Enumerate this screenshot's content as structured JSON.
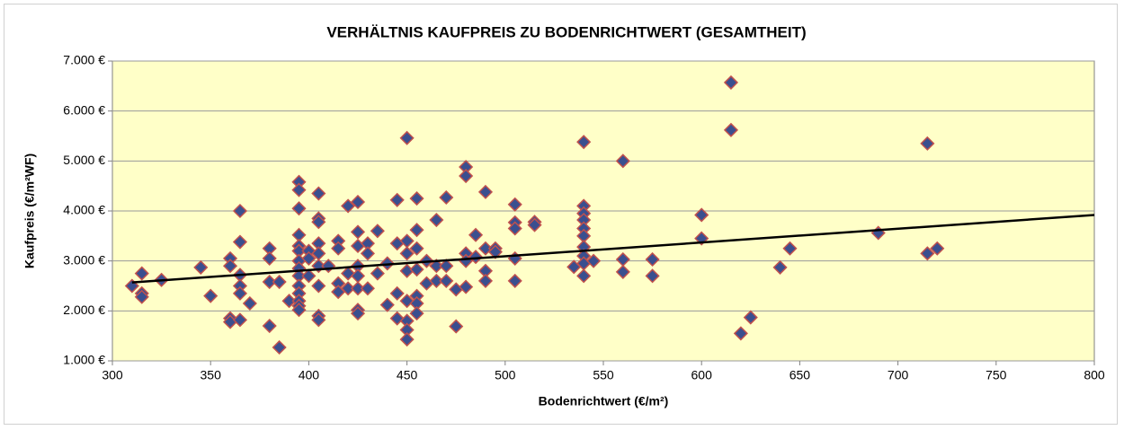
{
  "chart_data": {
    "type": "scatter",
    "title": "VERHÄLTNIS KAUFPREIS ZU BODENRICHTWERT (GESAMTHEIT)",
    "x_label": "Bodenrichtwert (€/m²)",
    "y_label": "Kaufpreis (€/m²WF)",
    "xlim": [
      300,
      800
    ],
    "xticks": [
      300,
      350,
      400,
      450,
      500,
      550,
      600,
      650,
      700,
      750,
      800
    ],
    "ylim": [
      1000,
      7000
    ],
    "yticks": [
      {
        "value": 1000,
        "label": "1.000 €"
      },
      {
        "value": 2000,
        "label": "2.000 €"
      },
      {
        "value": 3000,
        "label": "3.000 €"
      },
      {
        "value": 4000,
        "label": "4.000 €"
      },
      {
        "value": 5000,
        "label": "5.000 €"
      },
      {
        "value": 6000,
        "label": "6.000 €"
      },
      {
        "value": 7000,
        "label": "7.000 €"
      }
    ],
    "grid": true,
    "background": "#ffffc8",
    "marker_color": "#3a4f8f",
    "marker_edge": "#c0504d",
    "x": [
      310,
      315,
      315,
      315,
      325,
      345,
      350,
      360,
      360,
      360,
      360,
      365,
      365,
      365,
      365,
      365,
      365,
      370,
      380,
      380,
      380,
      380,
      385,
      385,
      390,
      395,
      395,
      395,
      395,
      395,
      395,
      395,
      395,
      395,
      395,
      395,
      395,
      395,
      395,
      400,
      400,
      400,
      405,
      405,
      405,
      405,
      405,
      405,
      405,
      405,
      405,
      410,
      415,
      415,
      415,
      415,
      420,
      420,
      420,
      425,
      425,
      425,
      425,
      425,
      425,
      425,
      425,
      430,
      430,
      430,
      435,
      435,
      440,
      440,
      445,
      445,
      445,
      445,
      450,
      450,
      450,
      450,
      450,
      450,
      450,
      450,
      455,
      455,
      455,
      455,
      455,
      455,
      455,
      460,
      460,
      465,
      465,
      465,
      470,
      470,
      470,
      475,
      475,
      480,
      480,
      480,
      480,
      480,
      485,
      485,
      490,
      490,
      490,
      490,
      495,
      495,
      505,
      505,
      505,
      505,
      505,
      515,
      515,
      535,
      540,
      540,
      540,
      540,
      540,
      540,
      540,
      540,
      540,
      540,
      545,
      560,
      560,
      560,
      575,
      575,
      600,
      600,
      615,
      615,
      620,
      625,
      640,
      645,
      690,
      715,
      715,
      720
    ],
    "y": [
      2500,
      2750,
      2350,
      2280,
      2620,
      2870,
      2300,
      3050,
      2900,
      1850,
      1780,
      4000,
      3380,
      2720,
      2500,
      2350,
      1820,
      2150,
      3250,
      3050,
      2580,
      1700,
      2580,
      1270,
      2200,
      4580,
      4420,
      4050,
      3520,
      3300,
      3200,
      3000,
      2850,
      2700,
      2500,
      2350,
      2200,
      2100,
      2020,
      3200,
      3050,
      2700,
      4350,
      3850,
      3780,
      3350,
      3150,
      2900,
      2500,
      1900,
      1820,
      2900,
      3400,
      3250,
      2550,
      2380,
      4100,
      2750,
      2450,
      4180,
      3580,
      3300,
      2900,
      2700,
      2450,
      2020,
      1950,
      3350,
      3150,
      2450,
      3600,
      2750,
      2950,
      2120,
      4220,
      3350,
      2350,
      1850,
      5460,
      3400,
      3150,
      2800,
      2200,
      1800,
      1620,
      1430,
      4250,
      3620,
      3250,
      2830,
      2300,
      2150,
      1950,
      3000,
      2550,
      3820,
      2900,
      2600,
      4270,
      2900,
      2600,
      2430,
      1690,
      4880,
      4700,
      3150,
      3000,
      2480,
      3520,
      3080,
      4380,
      3250,
      2800,
      2600,
      3250,
      3180,
      4130,
      3770,
      3650,
      3050,
      2600,
      3780,
      3720,
      2880,
      5380,
      4100,
      3950,
      3820,
      3650,
      3500,
      3280,
      3100,
      2950,
      2700,
      3000,
      5000,
      3030,
      2780,
      3030,
      2700,
      3920,
      3450,
      6570,
      5620,
      1550,
      1870,
      2870,
      3250,
      3560,
      5350,
      3150,
      3250
    ],
    "trendline": {
      "x": [
        310,
        800
      ],
      "y": [
        2570,
        3920
      ],
      "color": "#000000"
    }
  }
}
